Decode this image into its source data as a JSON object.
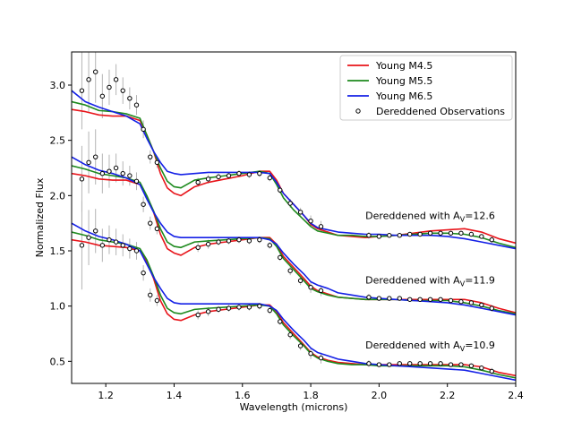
{
  "chart_data": {
    "type": "line",
    "title": "",
    "xlabel": "Wavelength (microns)",
    "ylabel": "Normalized Flux",
    "xlim": [
      1.1,
      2.4
    ],
    "ylim": [
      0.3,
      3.3
    ],
    "x_ticks": [
      1.2,
      1.4,
      1.6,
      1.8,
      2.0,
      2.2,
      2.4
    ],
    "x_tick_labels": [
      "1.2",
      "1.4",
      "1.6",
      "1.8",
      "2.0",
      "2.2",
      "2.4"
    ],
    "y_ticks": [
      0.5,
      1.0,
      1.5,
      2.0,
      2.5,
      3.0
    ],
    "y_tick_labels": [
      "0.5",
      "1.0",
      "1.5",
      "2.0",
      "2.5",
      "3.0"
    ],
    "grid": false,
    "legend_position": "top-right",
    "series_colors": {
      "m45": "#e8141a",
      "m55": "#1e8a1e",
      "m65": "#1420e6",
      "obs_edge": "#000000",
      "errbar": "#b4b4b4"
    },
    "legend": [
      {
        "key": "m45",
        "label": "Young M4.5",
        "style": "line"
      },
      {
        "key": "m55",
        "label": "Young M5.5",
        "style": "line"
      },
      {
        "key": "m65",
        "label": "Young M6.5",
        "style": "line"
      },
      {
        "key": "obs",
        "label": "Dereddened Observations",
        "style": "marker"
      }
    ],
    "model_wavelengths": [
      1.1,
      1.14,
      1.18,
      1.22,
      1.26,
      1.3,
      1.32,
      1.34,
      1.36,
      1.38,
      1.4,
      1.42,
      1.46,
      1.5,
      1.55,
      1.6,
      1.65,
      1.68,
      1.7,
      1.72,
      1.75,
      1.78,
      1.8,
      1.82,
      1.85,
      1.88,
      1.92,
      1.96,
      2.0,
      2.05,
      2.1,
      2.15,
      2.2,
      2.25,
      2.3,
      2.35,
      2.4
    ],
    "panels": [
      {
        "annotation": {
          "prefix": "Dereddened with A",
          "sub": "V",
          "suffix": "=12.6"
        },
        "models": {
          "m45": [
            2.78,
            2.76,
            2.73,
            2.72,
            2.72,
            2.68,
            2.55,
            2.4,
            2.2,
            2.07,
            2.02,
            2.0,
            2.08,
            2.12,
            2.15,
            2.18,
            2.22,
            2.22,
            2.14,
            2.02,
            1.92,
            1.82,
            1.74,
            1.7,
            1.67,
            1.64,
            1.63,
            1.62,
            1.63,
            1.64,
            1.66,
            1.68,
            1.69,
            1.7,
            1.67,
            1.61,
            1.57
          ],
          "m55": [
            2.85,
            2.82,
            2.77,
            2.76,
            2.74,
            2.7,
            2.55,
            2.4,
            2.25,
            2.13,
            2.08,
            2.07,
            2.14,
            2.16,
            2.18,
            2.2,
            2.22,
            2.2,
            2.1,
            1.98,
            1.87,
            1.78,
            1.72,
            1.68,
            1.66,
            1.64,
            1.64,
            1.63,
            1.63,
            1.64,
            1.65,
            1.66,
            1.66,
            1.65,
            1.62,
            1.57,
            1.53
          ],
          "m65": [
            2.95,
            2.85,
            2.8,
            2.76,
            2.72,
            2.65,
            2.52,
            2.4,
            2.3,
            2.22,
            2.2,
            2.19,
            2.2,
            2.21,
            2.21,
            2.21,
            2.21,
            2.2,
            2.12,
            2.02,
            1.92,
            1.82,
            1.75,
            1.71,
            1.69,
            1.67,
            1.66,
            1.65,
            1.65,
            1.64,
            1.64,
            1.64,
            1.63,
            1.61,
            1.58,
            1.55,
            1.52
          ]
        },
        "observations": {
          "x": [
            1.13,
            1.15,
            1.17,
            1.19,
            1.21,
            1.23,
            1.25,
            1.27,
            1.29,
            1.31,
            1.33,
            1.35,
            1.47,
            1.5,
            1.53,
            1.56,
            1.59,
            1.62,
            1.65,
            1.68,
            1.71,
            1.74,
            1.77,
            1.8,
            1.83,
            1.97,
            2.0,
            2.03,
            2.06,
            2.09,
            2.12,
            2.15,
            2.18,
            2.21,
            2.24,
            2.27,
            2.3,
            2.33
          ],
          "y": [
            2.95,
            3.05,
            3.12,
            2.9,
            2.98,
            3.05,
            2.95,
            2.88,
            2.82,
            2.6,
            2.35,
            2.3,
            2.12,
            2.15,
            2.17,
            2.18,
            2.2,
            2.19,
            2.2,
            2.16,
            2.05,
            1.93,
            1.85,
            1.77,
            1.72,
            1.64,
            1.63,
            1.64,
            1.64,
            1.65,
            1.65,
            1.66,
            1.66,
            1.66,
            1.66,
            1.65,
            1.63,
            1.6
          ],
          "err": [
            0.35,
            0.3,
            0.28,
            0.2,
            0.16,
            0.14,
            0.12,
            0.1,
            0.09,
            0.08,
            0.06,
            0.05,
            0.04,
            0.04,
            0.03,
            0.03,
            0.03,
            0.03,
            0.03,
            0.03,
            0.03,
            0.04,
            0.04,
            0.05,
            0.05,
            0.03,
            0.02,
            0.02,
            0.02,
            0.02,
            0.02,
            0.02,
            0.02,
            0.02,
            0.02,
            0.02,
            0.02,
            0.03
          ]
        }
      },
      {
        "annotation": {
          "prefix": "Dereddened with A",
          "sub": "V",
          "suffix": "=11.9"
        },
        "models": {
          "m45": [
            2.2,
            2.18,
            2.15,
            2.14,
            2.14,
            2.1,
            1.98,
            1.85,
            1.65,
            1.52,
            1.48,
            1.46,
            1.53,
            1.56,
            1.58,
            1.6,
            1.62,
            1.62,
            1.56,
            1.45,
            1.35,
            1.25,
            1.18,
            1.14,
            1.11,
            1.08,
            1.07,
            1.06,
            1.06,
            1.06,
            1.06,
            1.06,
            1.06,
            1.06,
            1.03,
            0.98,
            0.94
          ],
          "m55": [
            2.27,
            2.24,
            2.2,
            2.18,
            2.16,
            2.12,
            2.0,
            1.86,
            1.7,
            1.58,
            1.54,
            1.53,
            1.58,
            1.59,
            1.6,
            1.61,
            1.62,
            1.61,
            1.54,
            1.43,
            1.33,
            1.23,
            1.16,
            1.13,
            1.1,
            1.08,
            1.07,
            1.06,
            1.06,
            1.06,
            1.05,
            1.05,
            1.05,
            1.03,
            1.0,
            0.96,
            0.93
          ],
          "m65": [
            2.35,
            2.28,
            2.23,
            2.2,
            2.16,
            2.1,
            1.97,
            1.85,
            1.75,
            1.67,
            1.63,
            1.62,
            1.62,
            1.62,
            1.62,
            1.62,
            1.62,
            1.6,
            1.56,
            1.48,
            1.38,
            1.29,
            1.22,
            1.19,
            1.16,
            1.12,
            1.1,
            1.08,
            1.07,
            1.06,
            1.05,
            1.04,
            1.03,
            1.01,
            0.98,
            0.95,
            0.92
          ]
        },
        "observations": {
          "x": [
            1.13,
            1.15,
            1.17,
            1.19,
            1.21,
            1.23,
            1.25,
            1.27,
            1.29,
            1.31,
            1.33,
            1.35,
            1.47,
            1.5,
            1.53,
            1.56,
            1.59,
            1.62,
            1.65,
            1.68,
            1.71,
            1.74,
            1.77,
            1.8,
            1.83,
            1.97,
            2.0,
            2.03,
            2.06,
            2.09,
            2.12,
            2.15,
            2.18,
            2.21,
            2.24,
            2.27,
            2.3,
            2.33
          ],
          "y": [
            2.15,
            2.3,
            2.35,
            2.2,
            2.22,
            2.25,
            2.2,
            2.18,
            2.13,
            1.92,
            1.75,
            1.7,
            1.53,
            1.56,
            1.58,
            1.59,
            1.6,
            1.59,
            1.6,
            1.55,
            1.44,
            1.32,
            1.23,
            1.17,
            1.14,
            1.08,
            1.07,
            1.07,
            1.07,
            1.06,
            1.06,
            1.06,
            1.06,
            1.05,
            1.04,
            1.03,
            1.01,
            0.98
          ],
          "err": [
            0.3,
            0.28,
            0.25,
            0.18,
            0.15,
            0.13,
            0.11,
            0.09,
            0.08,
            0.07,
            0.06,
            0.05,
            0.04,
            0.04,
            0.03,
            0.03,
            0.03,
            0.03,
            0.03,
            0.03,
            0.03,
            0.04,
            0.04,
            0.05,
            0.05,
            0.03,
            0.02,
            0.02,
            0.02,
            0.02,
            0.02,
            0.02,
            0.02,
            0.02,
            0.02,
            0.02,
            0.02,
            0.03
          ]
        }
      },
      {
        "annotation": {
          "prefix": "Dereddened with A",
          "sub": "V",
          "suffix": "=10.9"
        },
        "models": {
          "m45": [
            1.6,
            1.58,
            1.55,
            1.54,
            1.53,
            1.5,
            1.4,
            1.25,
            1.05,
            0.93,
            0.88,
            0.87,
            0.92,
            0.95,
            0.97,
            0.99,
            1.01,
            1.01,
            0.95,
            0.85,
            0.75,
            0.65,
            0.58,
            0.54,
            0.51,
            0.49,
            0.48,
            0.47,
            0.47,
            0.47,
            0.47,
            0.47,
            0.47,
            0.47,
            0.45,
            0.4,
            0.37
          ],
          "m55": [
            1.67,
            1.64,
            1.6,
            1.58,
            1.56,
            1.52,
            1.42,
            1.27,
            1.1,
            0.98,
            0.94,
            0.93,
            0.97,
            0.98,
            0.99,
            1.0,
            1.01,
            1.0,
            0.93,
            0.83,
            0.73,
            0.64,
            0.57,
            0.53,
            0.5,
            0.48,
            0.47,
            0.47,
            0.46,
            0.46,
            0.46,
            0.46,
            0.46,
            0.45,
            0.42,
            0.38,
            0.35
          ],
          "m65": [
            1.75,
            1.68,
            1.63,
            1.6,
            1.56,
            1.5,
            1.38,
            1.26,
            1.16,
            1.07,
            1.03,
            1.02,
            1.02,
            1.02,
            1.02,
            1.02,
            1.02,
            1.0,
            0.96,
            0.88,
            0.78,
            0.69,
            0.62,
            0.58,
            0.55,
            0.52,
            0.5,
            0.48,
            0.47,
            0.46,
            0.45,
            0.44,
            0.43,
            0.42,
            0.39,
            0.36,
            0.33
          ]
        },
        "observations": {
          "x": [
            1.13,
            1.15,
            1.17,
            1.19,
            1.21,
            1.23,
            1.25,
            1.27,
            1.29,
            1.31,
            1.33,
            1.35,
            1.47,
            1.5,
            1.53,
            1.56,
            1.59,
            1.62,
            1.65,
            1.68,
            1.71,
            1.74,
            1.77,
            1.8,
            1.83,
            1.97,
            2.0,
            2.03,
            2.06,
            2.09,
            2.12,
            2.15,
            2.18,
            2.21,
            2.24,
            2.27,
            2.3,
            2.33
          ],
          "y": [
            1.55,
            1.62,
            1.68,
            1.55,
            1.6,
            1.58,
            1.55,
            1.52,
            1.5,
            1.3,
            1.1,
            1.05,
            0.92,
            0.95,
            0.97,
            0.98,
            0.99,
            0.99,
            1.0,
            0.96,
            0.86,
            0.74,
            0.64,
            0.57,
            0.53,
            0.48,
            0.47,
            0.47,
            0.48,
            0.48,
            0.48,
            0.48,
            0.48,
            0.47,
            0.47,
            0.46,
            0.44,
            0.41
          ],
          "err": [
            0.4,
            0.25,
            0.2,
            0.15,
            0.13,
            0.12,
            0.1,
            0.09,
            0.08,
            0.07,
            0.06,
            0.05,
            0.04,
            0.04,
            0.03,
            0.03,
            0.03,
            0.03,
            0.03,
            0.03,
            0.03,
            0.04,
            0.04,
            0.05,
            0.05,
            0.03,
            0.02,
            0.02,
            0.02,
            0.02,
            0.02,
            0.02,
            0.02,
            0.02,
            0.02,
            0.02,
            0.02,
            0.03
          ]
        }
      }
    ]
  }
}
